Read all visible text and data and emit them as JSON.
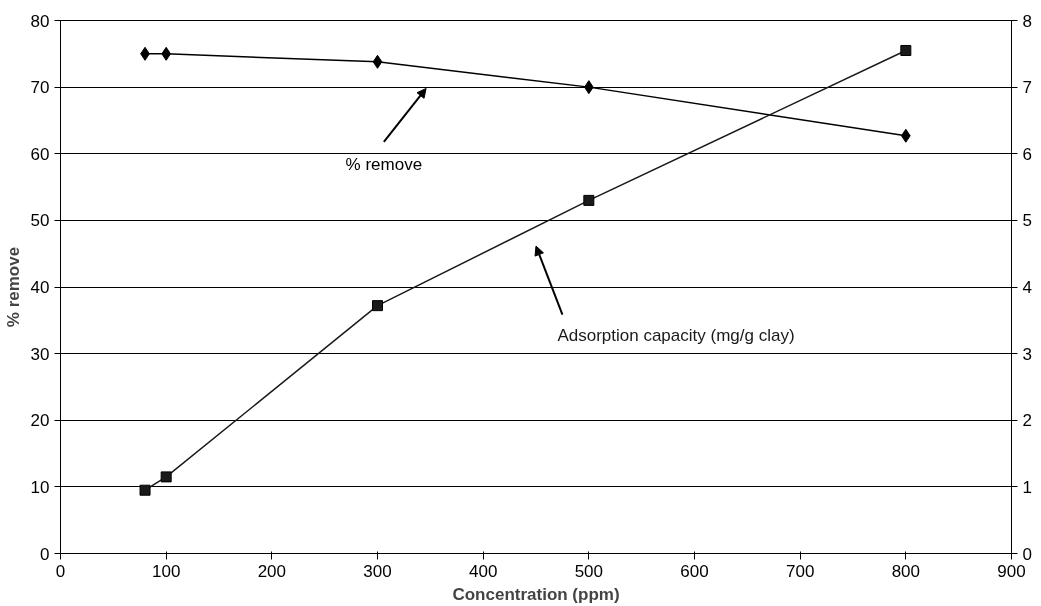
{
  "chart_data": {
    "type": "line",
    "xlabel": "Concentration (ppm)",
    "ylabel": "% remove",
    "x": [
      80,
      100,
      300,
      500,
      800
    ],
    "series": [
      {
        "name": "% remove",
        "color": "#000000",
        "marker": "diamond",
        "values": [
          75,
          75,
          73.8,
          70,
          62.7
        ]
      },
      {
        "name": "Adsorption capacity (mg/g clay)",
        "color": "#1a1a1a",
        "marker": "square",
        "axis": "y2",
        "values": [
          0.95,
          1.15,
          3.72,
          5.3,
          7.55
        ]
      }
    ],
    "xlim": [
      0,
      900
    ],
    "xticks": [
      0,
      100,
      200,
      300,
      400,
      500,
      600,
      700,
      800,
      900
    ],
    "ylim": [
      0,
      80
    ],
    "yticks": [
      0,
      10,
      20,
      30,
      40,
      50,
      60,
      70,
      80
    ],
    "y2lim": [
      0,
      8
    ],
    "y2ticks": [
      0,
      1,
      2,
      3,
      4,
      5,
      6,
      7,
      8
    ],
    "grid": "y",
    "legend": false,
    "line_style": "solid"
  }
}
